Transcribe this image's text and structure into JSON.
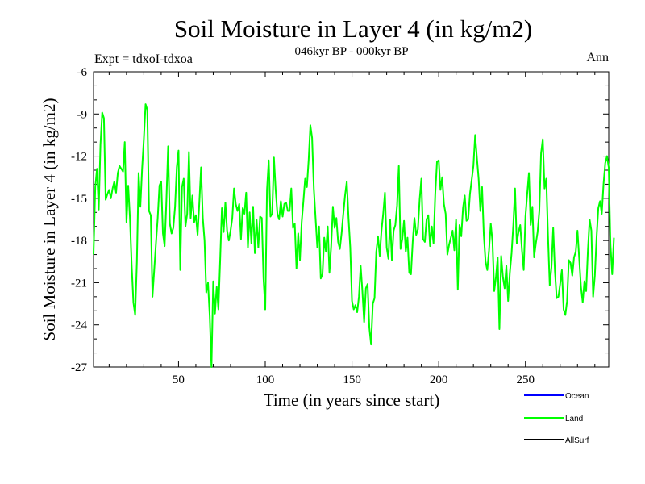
{
  "chart_data": {
    "type": "line",
    "title": "Soil Moisture in Layer 4 (in kg/m2)",
    "subtitle": "046kyr BP - 000kyr BP",
    "experiment_label": "Expt = tdxoI-tdxoa",
    "season_label": "Ann",
    "xlabel": "Time (in years since start)",
    "ylabel": "Soil Moisture in Layer 4 (in kg/m2)",
    "xlim": [
      1,
      298
    ],
    "ylim": [
      -27,
      -6
    ],
    "x_ticks": [
      50,
      100,
      150,
      200,
      250
    ],
    "y_ticks": [
      -27,
      -24,
      -21,
      -18,
      -15,
      -12,
      -9,
      -6
    ],
    "grid": false,
    "legend_position": "bottom-right",
    "series": [
      {
        "name": "Ocean",
        "color": "#0000ff",
        "values": []
      },
      {
        "name": "Land",
        "color": "#00ff00",
        "x_start": 1,
        "x_step": 1,
        "values": [
          -19,
          -14.2,
          -12.9,
          -15.8,
          -11.2,
          -8.9,
          -9.3,
          -15.1,
          -14.7,
          -14.4,
          -15,
          -14.3,
          -13.8,
          -14.6,
          -13.2,
          -12.7,
          -12.9,
          -13.1,
          -11,
          -16.7,
          -14.1,
          -16.4,
          -19.8,
          -22.4,
          -23.3,
          -19.5,
          -13.2,
          -15.6,
          -12.9,
          -10.8,
          -8.3,
          -8.7,
          -15.9,
          -16.2,
          -22,
          -20.1,
          -18.2,
          -16.4,
          -14.1,
          -13.8,
          -17.5,
          -18.4,
          -15.2,
          -11.3,
          -16.8,
          -17.5,
          -17.1,
          -15.6,
          -12.8,
          -11.6,
          -20.1,
          -14.2,
          -13.6,
          -17,
          -16.1,
          -11.7,
          -16.4,
          -14.8,
          -16.7,
          -16.2,
          -17.6,
          -15.3,
          -12.8,
          -16.4,
          -18,
          -21.7,
          -21,
          -23.4,
          -27,
          -20.9,
          -23.2,
          -21.3,
          -22.9,
          -19.4,
          -15.7,
          -17.4,
          -15.3,
          -17.3,
          -18,
          -17.3,
          -16.4,
          -14.3,
          -15.4,
          -15.9,
          -15.4,
          -17.9,
          -15.7,
          -16.1,
          -14.6,
          -18.5,
          -16,
          -18.2,
          -15.6,
          -18.9,
          -16.5,
          -18.5,
          -16.3,
          -16.4,
          -20.7,
          -22.9,
          -14.4,
          -12.3,
          -16.3,
          -16.1,
          -12.1,
          -14.4,
          -16.1,
          -16.5,
          -15.2,
          -16.3,
          -15.4,
          -15.3,
          -15.9,
          -15.9,
          -14.3,
          -17.1,
          -16.8,
          -20,
          -17.5,
          -19.4,
          -16.7,
          -15.2,
          -13.6,
          -14.2,
          -12.3,
          -9.8,
          -10.7,
          -14.3,
          -16.4,
          -18.5,
          -17,
          -20.7,
          -20.4,
          -17.8,
          -18.8,
          -17,
          -20.3,
          -18.4,
          -15.6,
          -17.1,
          -16.4,
          -18.1,
          -18.6,
          -17.5,
          -16.1,
          -14.8,
          -13.8,
          -16.4,
          -18.5,
          -22.3,
          -22.9,
          -22.6,
          -23.1,
          -22,
          -19.8,
          -21.6,
          -23.8,
          -21.4,
          -21.1,
          -24.2,
          -25.4,
          -22.5,
          -22.1,
          -18.8,
          -17.7,
          -19.1,
          -17.3,
          -16.1,
          -14.6,
          -18.5,
          -19.3,
          -16.5,
          -19.4,
          -17.3,
          -16.9,
          -15.5,
          -12.7,
          -18.6,
          -17.9,
          -16.6,
          -18.8,
          -17.8,
          -20.3,
          -20.4,
          -18.1,
          -16.4,
          -17.6,
          -17.2,
          -15.1,
          -13.6,
          -17.9,
          -18.1,
          -16.5,
          -16.2,
          -18.4,
          -17,
          -18.2,
          -14.7,
          -12.4,
          -12.3,
          -14.4,
          -13.5,
          -15.4,
          -16.1,
          -19,
          -18.3,
          -17.8,
          -17.3,
          -18.7,
          -16.5,
          -21.5,
          -16.9,
          -17.7,
          -15.7,
          -14.8,
          -16.6,
          -16.5,
          -14.7,
          -13.7,
          -12.7,
          -10.5,
          -12.1,
          -13.6,
          -15.9,
          -14.2,
          -17.6,
          -19.5,
          -20.1,
          -18.7,
          -16.8,
          -18.1,
          -21.6,
          -20.6,
          -19.2,
          -24.3,
          -19.1,
          -20.6,
          -21.4,
          -19.8,
          -22.3,
          -20.3,
          -18.9,
          -16.9,
          -14.3,
          -18.2,
          -17.4,
          -16.9,
          -18.7,
          -20.1,
          -16.3,
          -14.7,
          -13.2,
          -16.9,
          -15.6,
          -19.2,
          -18.2,
          -17.4,
          -15.9,
          -11.8,
          -10.8,
          -14.3,
          -13.6,
          -17.7,
          -21.2,
          -19.9,
          -17.1,
          -20.2,
          -22.1,
          -22,
          -21.1,
          -20.1,
          -22.9,
          -23.3,
          -22.3,
          -19.4,
          -19.6,
          -20.5,
          -19.2,
          -18.8,
          -17.3,
          -19.3,
          -21.3,
          -22.4,
          -20.9,
          -21.6,
          -18.7,
          -16.5,
          -17.3,
          -22,
          -20.5,
          -17.8,
          -15.7,
          -15.2,
          -16.1,
          -14,
          -12.5,
          -12,
          -12.8,
          -18.3,
          -20.4,
          -17.8
        ]
      },
      {
        "name": "AllSurf",
        "color": "#000000",
        "values": []
      }
    ]
  }
}
